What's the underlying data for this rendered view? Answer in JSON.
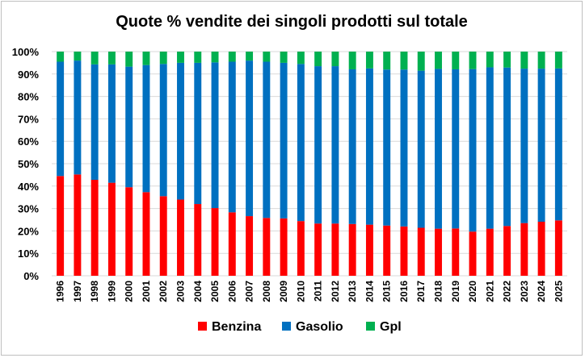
{
  "chart_data": {
    "type": "bar",
    "stacked": true,
    "title": "Quote % vendite dei singoli prodotti sul totale",
    "xlabel": "",
    "ylabel": "",
    "ylim": [
      0,
      100
    ],
    "y_ticks": [
      "0%",
      "10%",
      "20%",
      "30%",
      "40%",
      "50%",
      "60%",
      "70%",
      "80%",
      "90%",
      "100%"
    ],
    "grid": true,
    "legend": "bottom",
    "categories": [
      "1996",
      "1997",
      "1998",
      "1999",
      "2000",
      "2001",
      "2002",
      "2003",
      "2004",
      "2005",
      "2006",
      "2007",
      "2008",
      "2009",
      "2010",
      "2011",
      "2012",
      "2013",
      "2014",
      "2015",
      "2016",
      "2017",
      "2018",
      "2019",
      "2020",
      "2021",
      "2022",
      "2023",
      "2024",
      "2025"
    ],
    "series": [
      {
        "name": "Benzina",
        "color": "#ff0000",
        "values": [
          44.5,
          45.2,
          42.8,
          41.5,
          39.5,
          37.3,
          35.5,
          34.0,
          32.0,
          30.2,
          28.3,
          26.6,
          25.8,
          25.6,
          24.4,
          23.3,
          23.3,
          23.1,
          22.8,
          22.4,
          22.0,
          21.4,
          21.0,
          21.1,
          19.7,
          21.0,
          22.2,
          23.5,
          24.1,
          24.7
        ]
      },
      {
        "name": "Gasolio",
        "color": "#0070c0",
        "values": [
          51.0,
          50.8,
          51.5,
          52.8,
          53.8,
          56.7,
          59.0,
          61.0,
          63.0,
          65.0,
          67.2,
          69.4,
          69.7,
          69.4,
          70.1,
          70.2,
          70.2,
          69.0,
          69.7,
          69.6,
          70.0,
          70.1,
          71.3,
          71.0,
          72.5,
          72.0,
          70.7,
          68.9,
          68.3,
          67.8
        ]
      },
      {
        "name": "Gpl",
        "color": "#00b050",
        "values": [
          4.5,
          4.0,
          5.7,
          5.7,
          6.7,
          6.0,
          5.5,
          5.0,
          5.0,
          4.8,
          4.5,
          4.0,
          4.5,
          5.0,
          5.5,
          6.5,
          6.5,
          7.9,
          7.5,
          8.0,
          8.0,
          8.5,
          7.7,
          7.9,
          7.8,
          7.0,
          7.1,
          7.6,
          7.6,
          7.5
        ]
      }
    ]
  }
}
